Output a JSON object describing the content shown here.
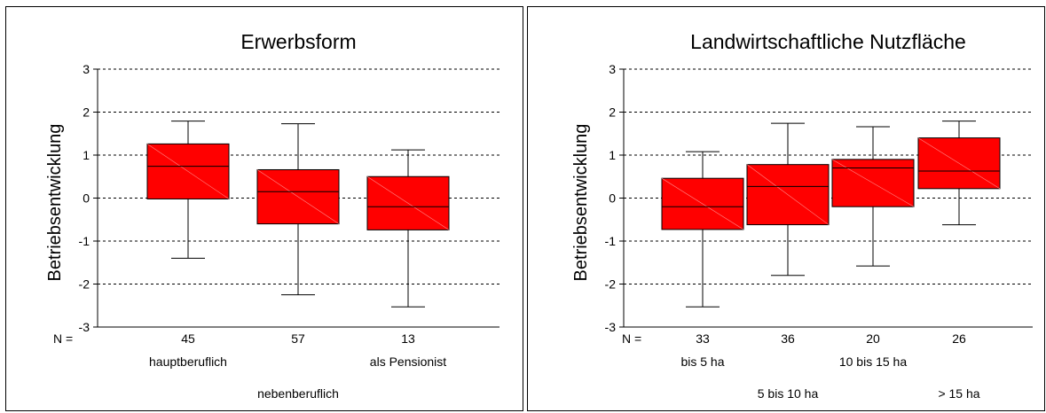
{
  "chart_data": [
    {
      "type": "boxplot",
      "title": "Erwerbsform",
      "ylabel": "Betriebsentwicklung",
      "ylim": [
        -3,
        3
      ],
      "yticks": [
        3,
        2,
        1,
        0,
        -1,
        -2,
        -3
      ],
      "grid": "horizontal dashed",
      "n_label": "N =",
      "box_color": "#ff0000",
      "categories": [
        "hauptberuflich",
        "nebenberuflich",
        "als Pensionist"
      ],
      "category_rows": [
        0,
        1,
        0
      ],
      "counts": [
        "45",
        "57",
        "13"
      ],
      "boxes": [
        {
          "whisker_low": -1.4,
          "q1": -0.02,
          "median": 0.74,
          "q3": 1.26,
          "whisker_high": 1.79
        },
        {
          "whisker_low": -2.25,
          "q1": -0.6,
          "median": 0.15,
          "q3": 0.66,
          "whisker_high": 1.73
        },
        {
          "whisker_low": -2.53,
          "q1": -0.74,
          "median": -0.2,
          "q3": 0.5,
          "whisker_high": 1.12
        }
      ]
    },
    {
      "type": "boxplot",
      "title": "Landwirtschaftliche Nutzfläche",
      "ylabel": "Betriebsentwicklung",
      "ylim": [
        -3,
        3
      ],
      "yticks": [
        3,
        2,
        1,
        0,
        -1,
        -2,
        -3
      ],
      "grid": "horizontal dashed",
      "n_label": "N =",
      "box_color": "#ff0000",
      "categories": [
        "bis 5 ha",
        "5 bis 10 ha",
        "10 bis 15 ha",
        "> 15 ha"
      ],
      "category_rows": [
        0,
        1,
        0,
        1
      ],
      "counts": [
        "33",
        "36",
        "20",
        "26"
      ],
      "boxes": [
        {
          "whisker_low": -2.53,
          "q1": -0.73,
          "median": -0.2,
          "q3": 0.46,
          "whisker_high": 1.08
        },
        {
          "whisker_low": -1.8,
          "q1": -0.62,
          "median": 0.27,
          "q3": 0.78,
          "whisker_high": 1.74
        },
        {
          "whisker_low": -1.58,
          "q1": -0.2,
          "median": 0.7,
          "q3": 0.9,
          "whisker_high": 1.66
        },
        {
          "whisker_low": -0.62,
          "q1": 0.22,
          "median": 0.63,
          "q3": 1.4,
          "whisker_high": 1.79
        }
      ]
    }
  ]
}
